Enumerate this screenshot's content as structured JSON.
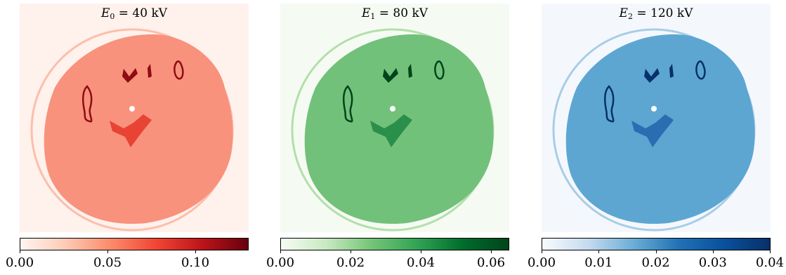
{
  "panels": [
    {
      "id": "red",
      "title": {
        "var": "E",
        "sub": "0",
        "rest": " = 40 kV"
      },
      "colors": {
        "bg": "#fff1ec",
        "main": "#f8927d",
        "rim": "#fbbfab",
        "mid": "#e84333",
        "dark": "#8e0c12"
      },
      "colorbar": {
        "stops": [
          "#fff5f0",
          "#fdcab5",
          "#fc8a6a",
          "#f14432",
          "#bc141a",
          "#67000d"
        ],
        "min": 0.0,
        "max": 0.13,
        "ticks": [
          {
            "value": 0.0,
            "label": "0.00"
          },
          {
            "value": 0.05,
            "label": "0.05"
          },
          {
            "value": 0.1,
            "label": "0.10"
          }
        ]
      }
    },
    {
      "id": "green",
      "title": {
        "var": "E",
        "sub": "1",
        "rest": " = 80 kV"
      },
      "colors": {
        "bg": "#f5fbf2",
        "main": "#72c17a",
        "rim": "#b2dfaa",
        "mid": "#2a8f4a",
        "dark": "#00441b"
      },
      "colorbar": {
        "stops": [
          "#f7fcf5",
          "#c7e9c0",
          "#74c476",
          "#31a354",
          "#006d2c",
          "#00441b"
        ],
        "min": 0.0,
        "max": 0.065,
        "ticks": [
          {
            "value": 0.0,
            "label": "0.00"
          },
          {
            "value": 0.02,
            "label": "0.02"
          },
          {
            "value": 0.04,
            "label": "0.04"
          },
          {
            "value": 0.06,
            "label": "0.06"
          }
        ]
      }
    },
    {
      "id": "blue",
      "title": {
        "var": "E",
        "sub": "2",
        "rest": " = 120 kV"
      },
      "colors": {
        "bg": "#f4f8fd",
        "main": "#5ea6d2",
        "rim": "#a9cde5",
        "mid": "#2a6db0",
        "dark": "#08306b"
      },
      "colorbar": {
        "stops": [
          "#f7fbff",
          "#c6dbef",
          "#6baed6",
          "#2171b5",
          "#08519c",
          "#08306b"
        ],
        "min": 0.0,
        "max": 0.04,
        "ticks": [
          {
            "value": 0.0,
            "label": "0.00"
          },
          {
            "value": 0.01,
            "label": "0.01"
          },
          {
            "value": 0.02,
            "label": "0.02"
          },
          {
            "value": 0.03,
            "label": "0.03"
          },
          {
            "value": 0.04,
            "label": "0.04"
          }
        ]
      }
    }
  ]
}
